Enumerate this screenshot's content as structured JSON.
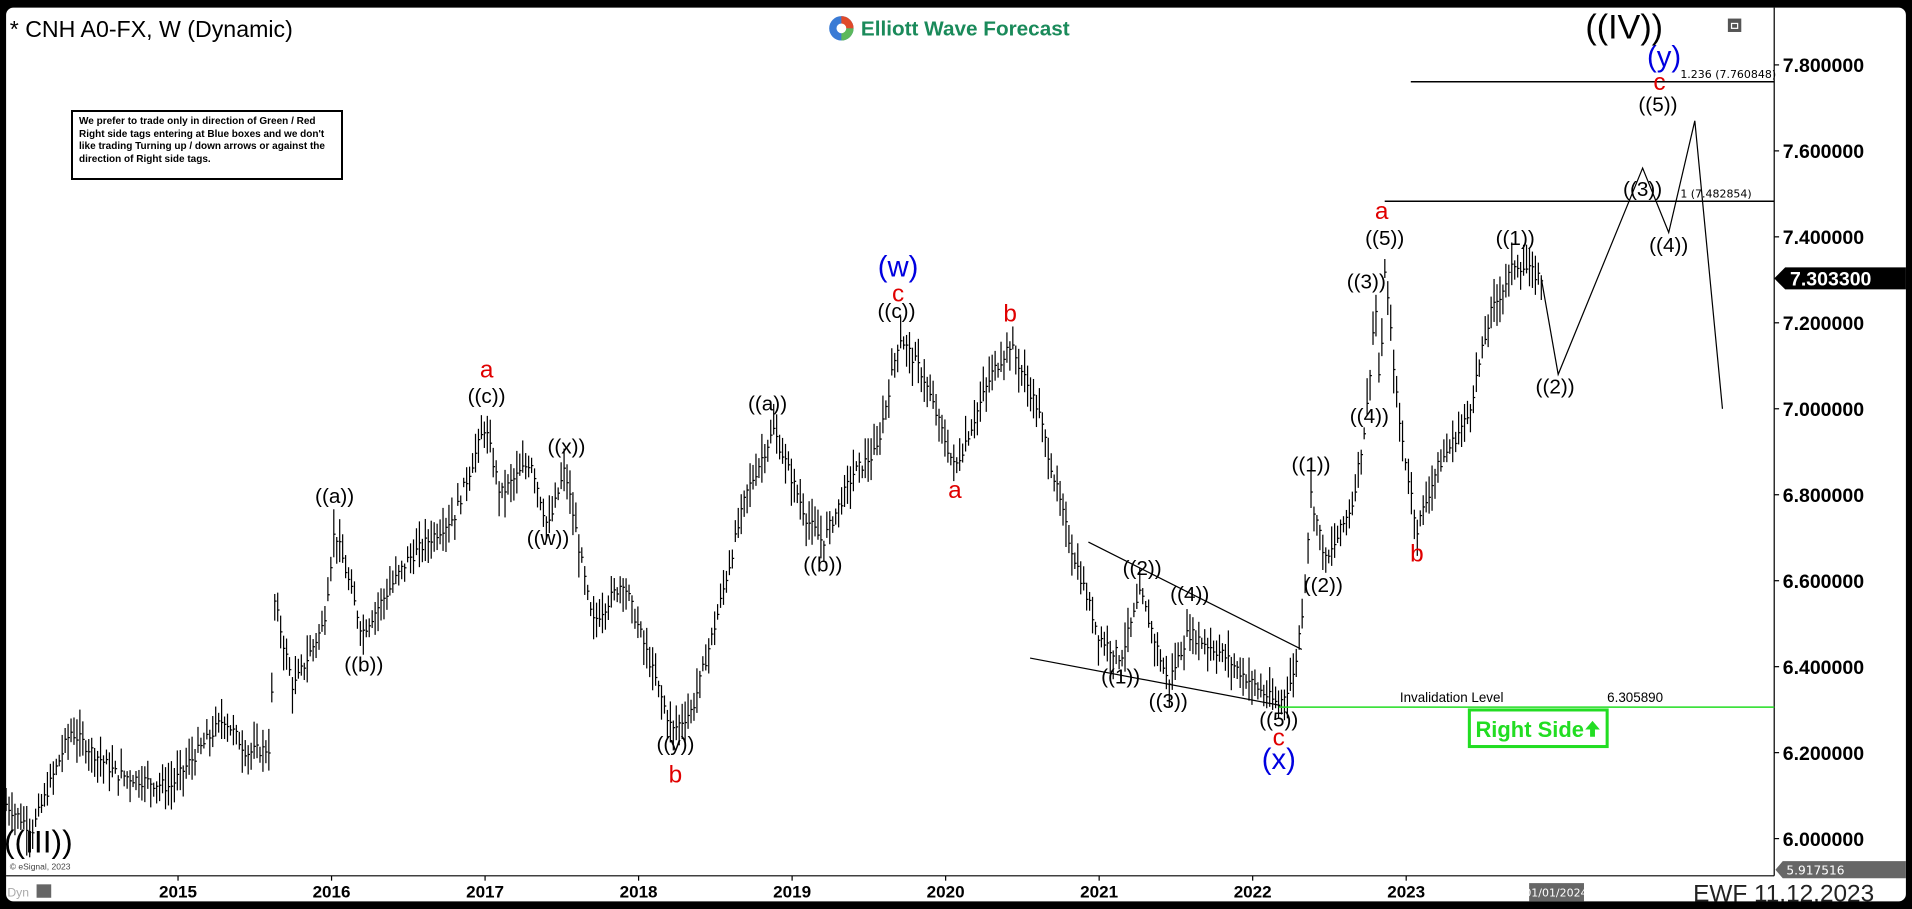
{
  "header": {
    "symbol_title": "* CNH A0-FX, W (Dynamic)",
    "logo_text": "Elliott Wave Forecast",
    "note": "We prefer to trade only in direction of Green / Red Right side tags entering at Blue boxes and we don't like trading Turning up / down arrows or against the direction of Right side tags."
  },
  "footer": {
    "copyright": "© eSignal, 2023",
    "dyn_label": "Dyn",
    "cursor_date": "01/01/2024",
    "stamp": "EWF 11.12.2023"
  },
  "colors": {
    "black": "#000000",
    "red": "#e00000",
    "blue": "#0000e0",
    "green": "#22dd22",
    "logo_green": "#1a8a5a"
  },
  "chart_data": {
    "type": "ohlc-bar",
    "timeframe": "W",
    "ylim": [
      5.917516,
      7.9
    ],
    "y_ticks": [
      "6.000000",
      "6.200000",
      "6.400000",
      "6.600000",
      "6.800000",
      "7.000000",
      "7.200000",
      "7.400000",
      "7.600000",
      "7.800000"
    ],
    "x_ticks": [
      "2015",
      "2016",
      "2017",
      "2018",
      "2019",
      "2020",
      "2021",
      "2022",
      "2023"
    ],
    "last_price": "7.303300",
    "low_marker": "5.917516",
    "price_path": [
      [
        2013.88,
        6.08
      ],
      [
        2014.05,
        6.02
      ],
      [
        2014.3,
        6.25
      ],
      [
        2014.6,
        6.15
      ],
      [
        2014.95,
        6.12
      ],
      [
        2015.3,
        6.28
      ],
      [
        2015.45,
        6.2
      ],
      [
        2015.6,
        6.21
      ],
      [
        2015.63,
        6.55
      ],
      [
        2015.75,
        6.35
      ],
      [
        2015.95,
        6.5
      ],
      [
        2016.02,
        6.72
      ],
      [
        2016.2,
        6.48
      ],
      [
        2016.5,
        6.65
      ],
      [
        2016.8,
        6.75
      ],
      [
        2017.0,
        6.96
      ],
      [
        2017.1,
        6.8
      ],
      [
        2017.3,
        6.88
      ],
      [
        2017.41,
        6.72
      ],
      [
        2017.52,
        6.86
      ],
      [
        2017.7,
        6.5
      ],
      [
        2017.9,
        6.6
      ],
      [
        2018.22,
        6.25
      ],
      [
        2018.35,
        6.3
      ],
      [
        2018.5,
        6.5
      ],
      [
        2018.7,
        6.8
      ],
      [
        2018.88,
        6.95
      ],
      [
        2019.1,
        6.74
      ],
      [
        2019.2,
        6.69
      ],
      [
        2019.4,
        6.85
      ],
      [
        2019.55,
        6.9
      ],
      [
        2019.7,
        7.17
      ],
      [
        2019.85,
        7.08
      ],
      [
        2020.06,
        6.86
      ],
      [
        2020.3,
        7.08
      ],
      [
        2020.42,
        7.15
      ],
      [
        2020.6,
        7.0
      ],
      [
        2020.8,
        6.7
      ],
      [
        2021.0,
        6.47
      ],
      [
        2021.14,
        6.42
      ],
      [
        2021.27,
        6.57
      ],
      [
        2021.45,
        6.36
      ],
      [
        2021.58,
        6.48
      ],
      [
        2021.8,
        6.43
      ],
      [
        2022.0,
        6.36
      ],
      [
        2022.17,
        6.31
      ],
      [
        2022.27,
        6.38
      ],
      [
        2022.33,
        6.55
      ],
      [
        2022.38,
        6.8
      ],
      [
        2022.48,
        6.64
      ],
      [
        2022.65,
        6.78
      ],
      [
        2022.74,
        6.98
      ],
      [
        2022.8,
        7.25
      ],
      [
        2022.83,
        7.02
      ],
      [
        2022.86,
        7.33
      ],
      [
        2022.95,
        6.98
      ],
      [
        2023.07,
        6.72
      ],
      [
        2023.2,
        6.86
      ],
      [
        2023.4,
        6.98
      ],
      [
        2023.55,
        7.22
      ],
      [
        2023.71,
        7.34
      ],
      [
        2023.88,
        7.3033
      ]
    ],
    "projection": [
      [
        2023.88,
        7.3033
      ],
      [
        2023.99,
        7.08
      ],
      [
        2024.54,
        7.56
      ],
      [
        2024.71,
        7.41
      ],
      [
        2024.88,
        7.67
      ],
      [
        2025.06,
        7.0
      ]
    ],
    "wedge_upper": [
      [
        2020.93,
        6.69
      ],
      [
        2022.32,
        6.44
      ]
    ],
    "wedge_lower": [
      [
        2020.55,
        6.42
      ],
      [
        2022.18,
        6.31
      ]
    ],
    "fib_levels": [
      {
        "label": "1.236 (7.760848)",
        "value": 7.760848,
        "from": 2023.03
      },
      {
        "label": "1 (7.482854)",
        "value": 7.482854,
        "from": 2022.86
      }
    ],
    "invalidation": {
      "label": "Invalidation Level",
      "value_text": "6.305890",
      "value": 6.30589,
      "from": 2022.17
    },
    "right_side_tag": "Right Side",
    "wave_labels": [
      {
        "t": "((III))",
        "c": "black",
        "x": 2014.09,
        "y": 5.987,
        "s": 26
      },
      {
        "t": "((a))",
        "c": "black",
        "x": 2016.02,
        "y": 6.793,
        "s": 17
      },
      {
        "t": "((b))",
        "c": "black",
        "x": 2016.21,
        "y": 6.401,
        "s": 17
      },
      {
        "t": "a",
        "c": "red",
        "x": 2017.01,
        "y": 7.088,
        "s": 20
      },
      {
        "t": "((c))",
        "c": "black",
        "x": 2017.01,
        "y": 7.026,
        "s": 17
      },
      {
        "t": "((x))",
        "c": "black",
        "x": 2017.53,
        "y": 6.909,
        "s": 17
      },
      {
        "t": "((w))",
        "c": "black",
        "x": 2017.41,
        "y": 6.696,
        "s": 17
      },
      {
        "t": "((y))",
        "c": "black",
        "x": 2018.24,
        "y": 6.217,
        "s": 17
      },
      {
        "t": "b",
        "c": "red",
        "x": 2018.24,
        "y": 6.146,
        "s": 20
      },
      {
        "t": "((a))",
        "c": "black",
        "x": 2018.84,
        "y": 7.009,
        "s": 17
      },
      {
        "t": "((b))",
        "c": "black",
        "x": 2019.2,
        "y": 6.634,
        "s": 17
      },
      {
        "t": "(w)",
        "c": "blue",
        "x": 2019.69,
        "y": 7.326,
        "s": 24
      },
      {
        "t": "c",
        "c": "red",
        "x": 2019.69,
        "y": 7.264,
        "s": 20
      },
      {
        "t": "((c))",
        "c": "black",
        "x": 2019.68,
        "y": 7.224,
        "s": 17
      },
      {
        "t": "b",
        "c": "red",
        "x": 2020.42,
        "y": 7.218,
        "s": 20
      },
      {
        "t": "a",
        "c": "red",
        "x": 2020.06,
        "y": 6.807,
        "s": 20
      },
      {
        "t": "((2))",
        "c": "black",
        "x": 2021.28,
        "y": 6.626,
        "s": 17
      },
      {
        "t": "((4))",
        "c": "black",
        "x": 2021.59,
        "y": 6.566,
        "s": 17
      },
      {
        "t": "((1))",
        "c": "black",
        "x": 2021.14,
        "y": 6.373,
        "s": 17
      },
      {
        "t": "((3))",
        "c": "black",
        "x": 2021.45,
        "y": 6.316,
        "s": 17
      },
      {
        "t": "((5))",
        "c": "black",
        "x": 2022.17,
        "y": 6.274,
        "s": 17
      },
      {
        "t": "c",
        "c": "red",
        "x": 2022.17,
        "y": 6.231,
        "s": 20
      },
      {
        "t": "(x)",
        "c": "blue",
        "x": 2022.17,
        "y": 6.18,
        "s": 24
      },
      {
        "t": "((1))",
        "c": "black",
        "x": 2022.38,
        "y": 6.867,
        "s": 17
      },
      {
        "t": "((2))",
        "c": "black",
        "x": 2022.46,
        "y": 6.586,
        "s": 17
      },
      {
        "t": "((4))",
        "c": "black",
        "x": 2022.76,
        "y": 6.98,
        "s": 17
      },
      {
        "t": "((3))",
        "c": "black",
        "x": 2022.74,
        "y": 7.292,
        "s": 17
      },
      {
        "t": "((5))",
        "c": "black",
        "x": 2022.86,
        "y": 7.394,
        "s": 17
      },
      {
        "t": "a",
        "c": "red",
        "x": 2022.84,
        "y": 7.457,
        "s": 20
      },
      {
        "t": "b",
        "c": "red",
        "x": 2023.07,
        "y": 6.66,
        "s": 20
      },
      {
        "t": "((1))",
        "c": "black",
        "x": 2023.71,
        "y": 7.394,
        "s": 17
      },
      {
        "t": "((2))",
        "c": "black",
        "x": 2023.97,
        "y": 7.048,
        "s": 17
      },
      {
        "t": "((3))",
        "c": "black",
        "x": 2024.54,
        "y": 7.508,
        "s": 17
      },
      {
        "t": "((4))",
        "c": "black",
        "x": 2024.71,
        "y": 7.377,
        "s": 17
      },
      {
        "t": "((5))",
        "c": "black",
        "x": 2024.64,
        "y": 7.704,
        "s": 17
      },
      {
        "t": "c",
        "c": "red",
        "x": 2024.65,
        "y": 7.757,
        "s": 20
      },
      {
        "t": "(y)",
        "c": "blue",
        "x": 2024.68,
        "y": 7.814,
        "s": 24
      },
      {
        "t": "((IV))",
        "c": "black",
        "x": 2024.42,
        "y": 7.882,
        "s": 28
      }
    ]
  }
}
